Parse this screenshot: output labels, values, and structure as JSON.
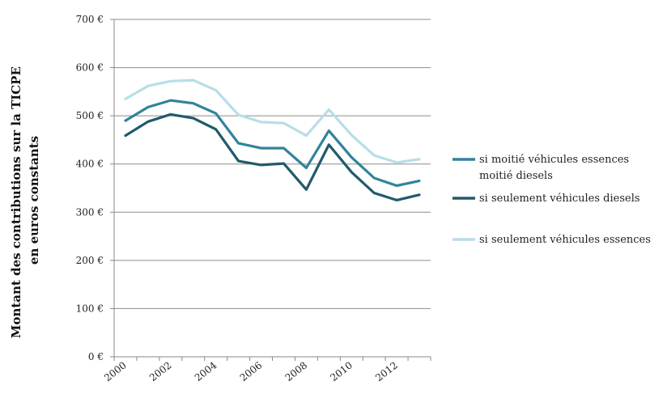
{
  "chart_data": {
    "type": "line",
    "x": [
      "2000",
      "2001",
      "2002",
      "2003",
      "2004",
      "2005",
      "2006",
      "2007",
      "2008",
      "2009",
      "2010",
      "2011",
      "2012",
      "2013"
    ],
    "x_tick_labels": [
      "2000",
      "2002",
      "2004",
      "2006",
      "2008",
      "2010",
      "2012"
    ],
    "y_tick_labels": [
      "0 €",
      "100 €",
      "200 €",
      "300 €",
      "400 €",
      "500 €",
      "600 €",
      "700 €"
    ],
    "ylim": [
      0,
      700
    ],
    "ylabel_lines": [
      "Montant des contributions sur la TICPE",
      "en euros constants"
    ],
    "grid": "horizontal",
    "legend_position": "right",
    "series": [
      {
        "name_lines": [
          "si moitié véhicules essences",
          "moitié diesels"
        ],
        "color": "#31849b",
        "values": [
          490,
          518,
          532,
          526,
          505,
          443,
          433,
          433,
          392,
          469,
          414,
          371,
          355,
          365
        ]
      },
      {
        "name_lines": [
          "si seulement véhicules diesels"
        ],
        "color": "#215a6b",
        "values": [
          459,
          488,
          503,
          495,
          472,
          406,
          398,
          401,
          347,
          440,
          383,
          340,
          325,
          336
        ]
      },
      {
        "name_lines": [
          "si seulement véhicules essences"
        ],
        "color": "#b7dee8",
        "values": [
          535,
          562,
          572,
          574,
          553,
          502,
          487,
          485,
          459,
          513,
          460,
          418,
          403,
          410
        ]
      }
    ]
  }
}
